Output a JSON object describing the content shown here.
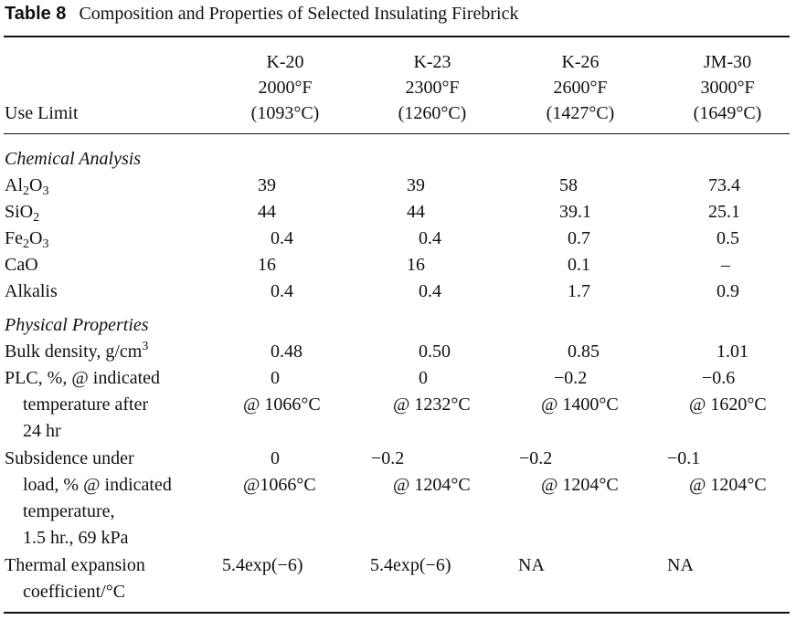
{
  "caption": {
    "number": "Table 8",
    "title": "Composition and Properties of Selected Insulating Firebrick"
  },
  "header": {
    "row_label": "Use Limit",
    "columns": [
      {
        "grade": "K-20",
        "temp_f": "2000°F",
        "temp_c": "(1093°C)"
      },
      {
        "grade": "K-23",
        "temp_f": "2300°F",
        "temp_c": "(1260°C)"
      },
      {
        "grade": "K-26",
        "temp_f": "2600°F",
        "temp_c": "(1427°C)"
      },
      {
        "grade": "JM-30",
        "temp_f": "3000°F",
        "temp_c": "(1649°C)"
      }
    ]
  },
  "chemical": {
    "heading": "Chemical Analysis",
    "rows": [
      {
        "label_main": "Al",
        "sub1": "2",
        "mid": "O",
        "sub2": "3",
        "values": [
          "39",
          "39",
          "58",
          "73.4"
        ]
      },
      {
        "label_main": "SiO",
        "sub1": "2",
        "values": [
          "44",
          "44",
          "39.1",
          "25.1"
        ]
      },
      {
        "label_main": "Fe",
        "sub1": "2",
        "mid": "O",
        "sub2": "3",
        "values": [
          "0.4",
          "0.4",
          "0.7",
          "0.5"
        ]
      },
      {
        "label": "CaO",
        "values": [
          "16",
          "16",
          "0.1",
          "–"
        ]
      },
      {
        "label": "Alkalis",
        "values": [
          "0.4",
          "0.4",
          "1.7",
          "0.9"
        ]
      }
    ]
  },
  "physical": {
    "heading": "Physical Properties",
    "bulk_density": {
      "label": "Bulk density, g/cm",
      "sup": "3",
      "values": [
        "0.48",
        "0.50",
        "0.85",
        "1.01"
      ]
    },
    "plc": {
      "label_lines": [
        "PLC, %, @ indicated",
        "temperature after",
        "24 hr"
      ],
      "values": [
        "0",
        "0",
        "−0.2",
        "−0.6"
      ],
      "temps": [
        "@ 1066°C",
        "@ 1232°C",
        "@ 1400°C",
        "@ 1620°C"
      ]
    },
    "subsidence": {
      "label_lines": [
        "Subsidence under",
        "load, % @ indicated",
        "temperature,",
        "1.5 hr., 69 kPa"
      ],
      "values": [
        "0",
        "−0.2",
        "−0.2",
        "−0.1"
      ],
      "temps": [
        "@1066°C",
        "@ 1204°C",
        "@ 1204°C",
        "@ 1204°C"
      ]
    },
    "thermal": {
      "label_lines": [
        "Thermal expansion",
        "coefficient/°C"
      ],
      "values": [
        "5.4exp(−6)",
        "5.4exp(−6)",
        "NA",
        "NA"
      ]
    }
  }
}
